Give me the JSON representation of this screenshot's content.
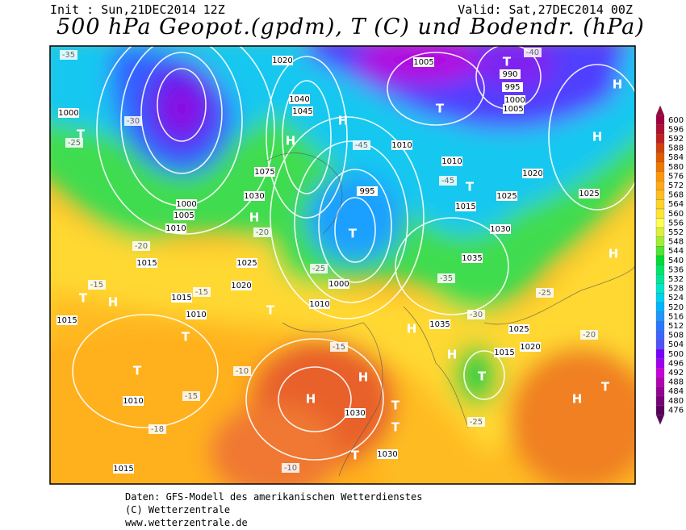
{
  "header": {
    "init": "Init : Sun,21DEC2014 12Z",
    "valid": "Valid: Sat,27DEC2014 00Z",
    "title": "500 hPa Geopot.(gpdm), T (C) und Bodendr. (hPa)"
  },
  "footer": [
    "Daten: GFS-Modell des amerikanischen Wetterdienstes",
    "(C) Wetterzentrale",
    "www.wetterzentrale.de"
  ],
  "colorbar": {
    "levels": [
      600,
      596,
      592,
      588,
      584,
      580,
      576,
      572,
      568,
      564,
      560,
      556,
      552,
      548,
      544,
      540,
      536,
      532,
      528,
      524,
      520,
      516,
      512,
      508,
      504,
      500,
      496,
      492,
      488,
      484,
      480,
      476
    ],
    "colors": [
      "#a00040",
      "#b01030",
      "#c02020",
      "#d04010",
      "#e05a00",
      "#f07800",
      "#ff960a",
      "#ffaa14",
      "#ffbe1e",
      "#ffd228",
      "#ffe632",
      "#ffff50",
      "#dcf03c",
      "#a0f032",
      "#50e632",
      "#00dc32",
      "#00e664",
      "#00e696",
      "#00e6c8",
      "#00d2f0",
      "#00b4ff",
      "#1e96ff",
      "#2878ff",
      "#3c64ff",
      "#5050ff",
      "#7800ff",
      "#a000f0",
      "#c800dc",
      "#b400b4",
      "#960096",
      "#780078",
      "#5a005a"
    ]
  },
  "map": {
    "pressure_systems": [
      "H",
      "H",
      "H",
      "H",
      "H",
      "H",
      "H",
      "H",
      "H",
      "H",
      "H",
      "H",
      "T",
      "T",
      "T",
      "T",
      "T",
      "T",
      "T",
      "T",
      "T",
      "T",
      "T",
      "T",
      "T",
      "T"
    ],
    "isobar_labels": [
      "1020",
      "1005",
      "990",
      "995",
      "1000",
      "1005",
      "1000",
      "1045",
      "1040",
      "1010",
      "1025",
      "1020",
      "1025",
      "1075",
      "1030",
      "1025",
      "1020",
      "1015",
      "1015",
      "1010",
      "1015",
      "1010",
      "1015",
      "1030",
      "1030",
      "1035",
      "1025",
      "1020",
      "1015",
      "1035",
      "1030",
      "1015",
      "1010",
      "1000",
      "1010",
      "995",
      "1010",
      "1005",
      "1000"
    ],
    "temperature_labels": [
      "-35",
      "-30",
      "-25",
      "-20",
      "-15",
      "-15",
      "-20",
      "-25",
      "-35",
      "-30",
      "-25",
      "-20",
      "-15",
      "-10",
      "-15",
      "-18",
      "-10",
      "-25",
      "-40",
      "-45",
      "-45"
    ]
  }
}
